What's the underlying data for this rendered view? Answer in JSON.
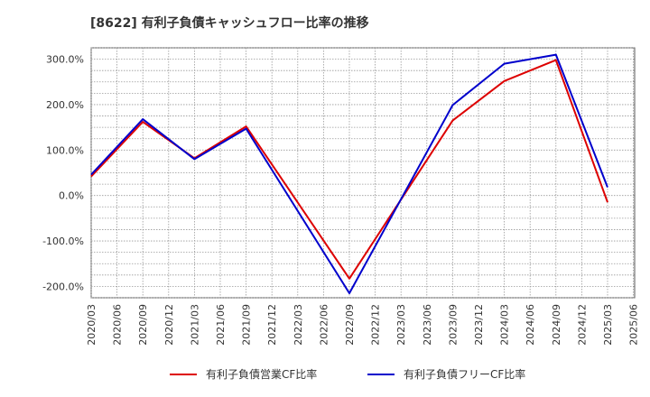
{
  "chart_data": {
    "type": "line",
    "title": "[8622]  有利子負債キャッシュフロー比率の推移",
    "xlabel": "",
    "ylabel": "",
    "x_ticks": [
      "2020/03",
      "2020/06",
      "2020/09",
      "2020/12",
      "2021/03",
      "2021/06",
      "2021/09",
      "2021/12",
      "2022/03",
      "2022/06",
      "2022/09",
      "2022/12",
      "2023/03",
      "2023/06",
      "2023/09",
      "2023/12",
      "2024/03",
      "2024/06",
      "2024/09",
      "2024/12",
      "2025/03",
      "2025/06"
    ],
    "y_ticks": [
      300,
      200,
      100,
      0,
      -100,
      -200
    ],
    "y_tick_labels": [
      "300.0%",
      "200.0%",
      "100.0%",
      "0.0%",
      "-100.0%",
      "-200.0%"
    ],
    "ylim": [
      -225,
      325
    ],
    "grid": true,
    "legend_position": "bottom",
    "series": [
      {
        "name": "有利子負債営業CF比率",
        "color": "#dd0000",
        "x": [
          "2020/03",
          "2020/09",
          "2021/03",
          "2021/09",
          "2022/09",
          "2023/09",
          "2024/03",
          "2024/09",
          "2025/03"
        ],
        "values": [
          42,
          162,
          82,
          152,
          -183,
          165,
          252,
          298,
          -15
        ]
      },
      {
        "name": "有利子負債フリーCF比率",
        "color": "#0000cc",
        "x": [
          "2020/03",
          "2020/09",
          "2021/03",
          "2021/09",
          "2022/09",
          "2023/09",
          "2024/03",
          "2024/09",
          "2025/03"
        ],
        "values": [
          46,
          168,
          80,
          147,
          -215,
          199,
          290,
          310,
          18
        ]
      }
    ]
  }
}
